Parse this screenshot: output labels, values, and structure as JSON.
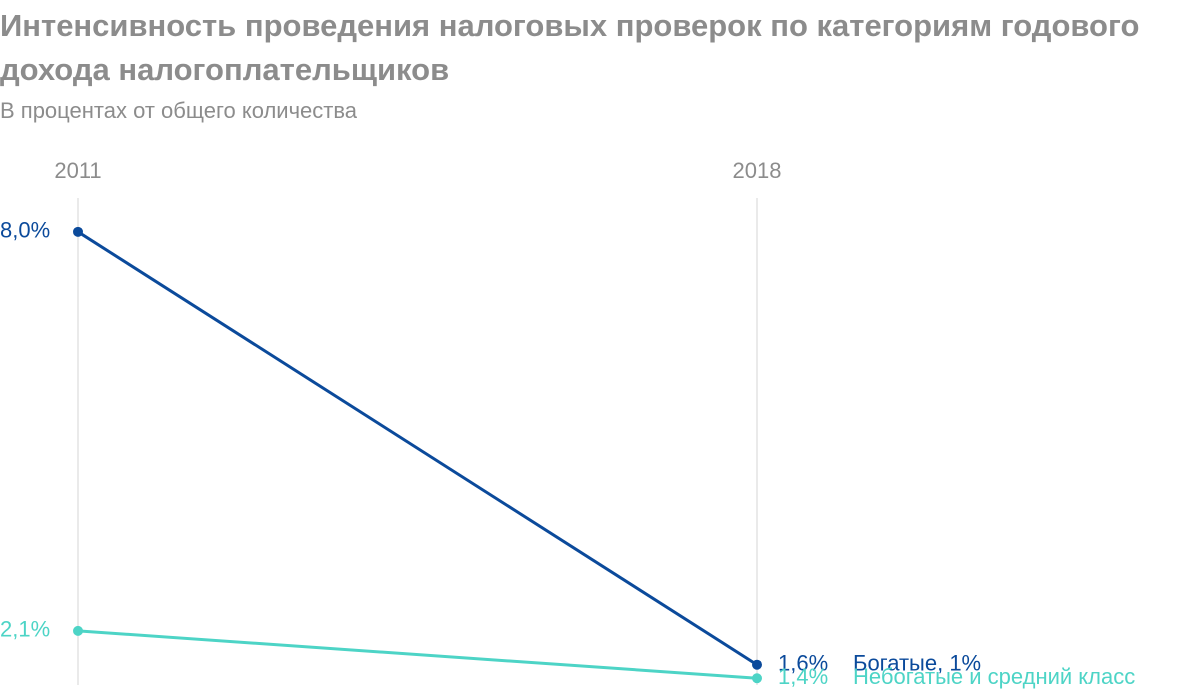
{
  "chart_data": {
    "type": "slope",
    "title": "Интенсивность проведения налоговых проверок по категориям годового дохода налогоплательщиков",
    "subtitle": "В процентах от общего количества",
    "categories": [
      "2011",
      "2018"
    ],
    "ylim": [
      1.3,
      8.5
    ],
    "series": [
      {
        "name": "Богатые, 1%",
        "color": "#0b4a9b",
        "values": [
          8.0,
          1.6
        ],
        "value_labels": [
          "8,0%",
          "1,6%"
        ]
      },
      {
        "name": "Небогатые и средний класс",
        "color": "#4dd4c6",
        "values": [
          2.1,
          1.4
        ],
        "value_labels": [
          "2,1%",
          "1,4%"
        ]
      }
    ]
  }
}
